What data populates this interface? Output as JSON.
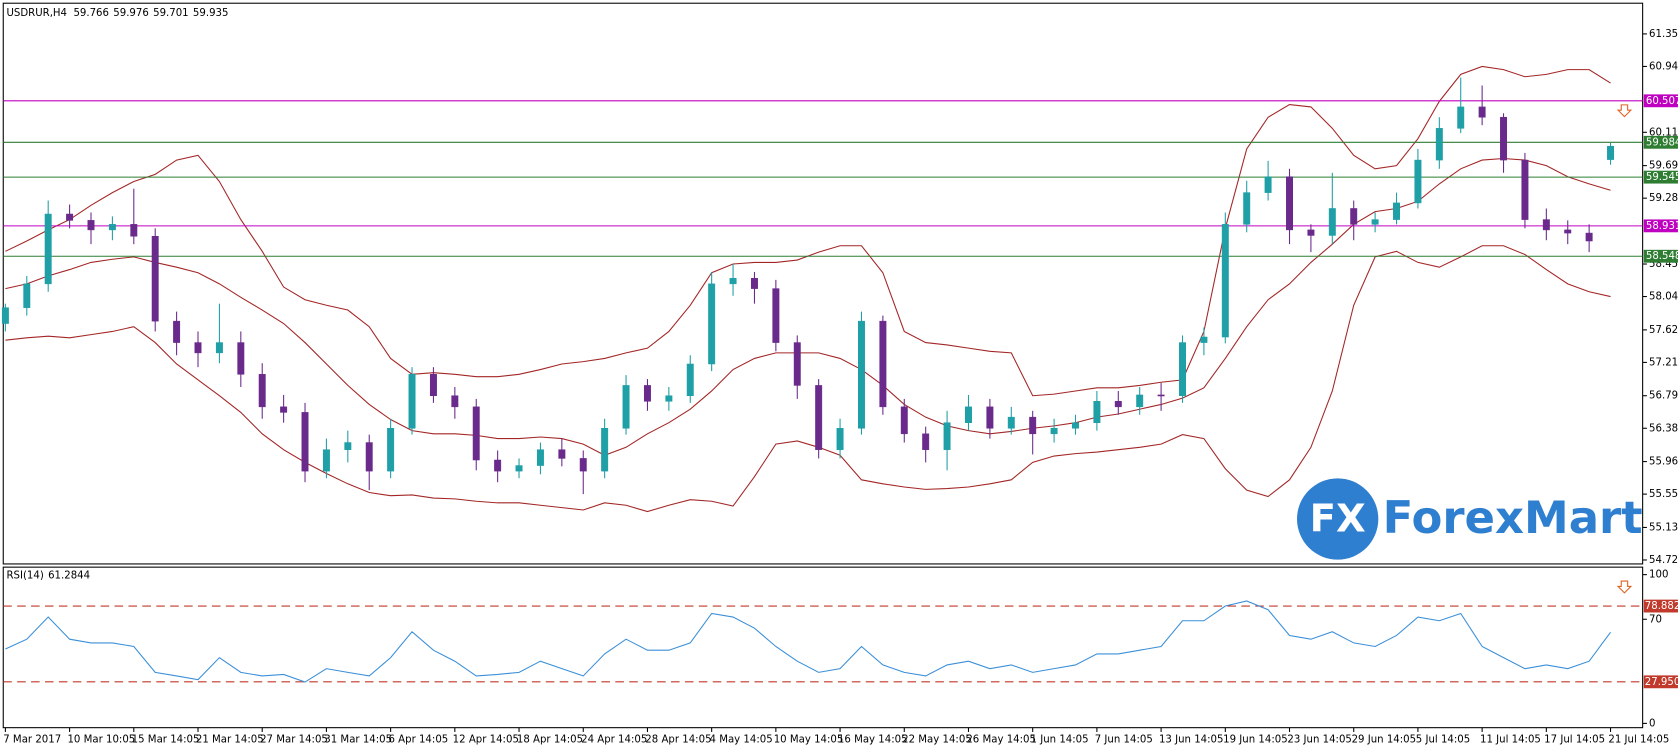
{
  "header": {
    "symbol": "USDRUR,H4"
  },
  "watermark": {
    "mark": "FX",
    "text": "ForexMart"
  },
  "chart_data": [
    {
      "type": "candlestick",
      "categories": [
        "7 Mar 2017",
        null,
        null,
        "10 Mar 10:05",
        null,
        null,
        "15 Mar 14:05",
        null,
        null,
        "21 Mar 14:05",
        null,
        null,
        "27 Mar 14:05",
        null,
        null,
        "31 Mar 14:05",
        null,
        null,
        "6 Apr 14:05",
        null,
        null,
        "12 Apr 14:05",
        null,
        null,
        "18 Apr 14:05",
        null,
        null,
        "24 Apr 14:05",
        null,
        null,
        "28 Apr 14:05",
        null,
        null,
        "4 May 14:05",
        null,
        null,
        "10 May 14:05",
        null,
        null,
        "16 May 14:05",
        null,
        null,
        "22 May 14:05",
        null,
        null,
        "26 May 14:05",
        null,
        null,
        "1 Jun 14:05",
        null,
        null,
        "7 Jun 14:05",
        null,
        null,
        "13 Jun 14:05",
        null,
        null,
        "19 Jun 14:05",
        null,
        null,
        "23 Jun 14:05",
        null,
        null,
        "29 Jun 14:05",
        null,
        null,
        "5 Jul 14:05",
        null,
        null,
        "11 Jul 14:05",
        null,
        null,
        "17 Jul 14:05",
        null,
        null,
        "21 Jul 14:05"
      ],
      "open": [
        57.7,
        57.9,
        58.2,
        59.08,
        59.0,
        58.88,
        58.95,
        58.8,
        57.73,
        57.46,
        57.33,
        57.46,
        57.06,
        56.65,
        56.58,
        55.84,
        56.11,
        56.2,
        55.84,
        56.38,
        57.06,
        56.79,
        56.65,
        55.98,
        55.84,
        55.91,
        56.11,
        56.0,
        55.84,
        56.38,
        56.92,
        56.72,
        56.79,
        57.19,
        58.2,
        58.27,
        58.14,
        57.46,
        56.92,
        56.11,
        56.38,
        57.73,
        56.65,
        56.31,
        56.11,
        56.45,
        56.65,
        56.38,
        56.52,
        56.31,
        56.38,
        56.45,
        56.72,
        56.65,
        56.8,
        56.79,
        57.46,
        57.53,
        58.95,
        59.35,
        59.55,
        58.88,
        58.81,
        59.15,
        58.95,
        59.01,
        59.22,
        59.76,
        60.16,
        60.43,
        60.3,
        59.76,
        59.01,
        58.88,
        58.84,
        59.766
      ],
      "high": [
        57.95,
        58.3,
        59.25,
        59.2,
        59.1,
        59.05,
        59.4,
        58.9,
        57.85,
        57.6,
        57.95,
        57.6,
        57.2,
        56.8,
        56.7,
        56.25,
        56.35,
        56.3,
        56.5,
        57.15,
        57.15,
        56.9,
        56.75,
        56.1,
        56.0,
        56.2,
        56.25,
        56.1,
        56.5,
        57.05,
        57.0,
        56.9,
        57.3,
        58.35,
        58.45,
        58.35,
        58.25,
        57.55,
        57.0,
        56.5,
        57.85,
        57.8,
        56.75,
        56.4,
        56.6,
        56.8,
        56.75,
        56.65,
        56.6,
        56.5,
        56.55,
        56.85,
        56.85,
        56.9,
        56.95,
        57.55,
        57.65,
        59.1,
        59.5,
        59.75,
        59.65,
        58.95,
        59.6,
        59.25,
        59.1,
        59.35,
        59.9,
        60.3,
        60.8,
        60.7,
        60.35,
        59.85,
        59.15,
        59.0,
        58.95,
        59.976
      ],
      "low": [
        57.6,
        57.8,
        58.1,
        58.9,
        58.7,
        58.75,
        58.7,
        57.6,
        57.3,
        57.15,
        57.2,
        56.9,
        56.5,
        56.45,
        55.7,
        55.75,
        55.95,
        55.6,
        55.75,
        56.3,
        56.7,
        56.5,
        55.85,
        55.7,
        55.75,
        55.8,
        55.9,
        55.55,
        55.75,
        56.3,
        56.6,
        56.6,
        56.7,
        57.1,
        58.05,
        57.95,
        57.35,
        56.75,
        56.0,
        56.0,
        56.3,
        56.55,
        56.2,
        55.95,
        55.85,
        56.35,
        56.25,
        56.3,
        56.05,
        56.2,
        56.3,
        56.35,
        56.55,
        56.55,
        56.6,
        56.7,
        57.3,
        57.45,
        58.85,
        59.25,
        58.7,
        58.6,
        58.7,
        58.75,
        58.85,
        58.95,
        59.15,
        59.65,
        60.1,
        60.2,
        59.6,
        58.9,
        58.75,
        58.7,
        58.6,
        59.701
      ],
      "close": [
        57.9,
        58.2,
        59.08,
        59.0,
        58.88,
        58.95,
        58.8,
        57.73,
        57.46,
        57.33,
        57.46,
        57.06,
        56.65,
        56.58,
        55.84,
        56.11,
        56.2,
        55.84,
        56.38,
        57.06,
        56.79,
        56.65,
        55.98,
        55.84,
        55.91,
        56.11,
        56.0,
        55.84,
        56.38,
        56.92,
        56.72,
        56.79,
        57.19,
        58.2,
        58.27,
        58.14,
        57.46,
        56.92,
        56.11,
        56.38,
        57.73,
        56.65,
        56.31,
        56.11,
        56.45,
        56.65,
        56.38,
        56.52,
        56.31,
        56.38,
        56.45,
        56.72,
        56.65,
        56.8,
        56.79,
        57.46,
        57.53,
        58.95,
        59.35,
        59.55,
        58.88,
        58.81,
        59.15,
        58.95,
        59.01,
        59.22,
        59.76,
        60.16,
        60.43,
        60.3,
        59.76,
        59.01,
        58.88,
        58.84,
        58.74,
        59.935
      ],
      "bull_color": "#1f9fa6",
      "bear_color": "#6a2a8c",
      "overlays": [
        {
          "color": "#a32626",
          "values": [
            58.61,
            58.74,
            58.88,
            59.01,
            59.19,
            59.35,
            59.49,
            59.58,
            59.76,
            59.82,
            59.49,
            59.01,
            58.61,
            58.16,
            58.0,
            57.93,
            57.87,
            57.66,
            57.26,
            57.06,
            57.08,
            57.06,
            57.03,
            57.03,
            57.06,
            57.12,
            57.19,
            57.22,
            57.26,
            57.33,
            57.39,
            57.6,
            57.93,
            58.34,
            58.45,
            58.47,
            58.47,
            58.5,
            58.6,
            58.68,
            58.68,
            58.34,
            57.6,
            57.46,
            57.43,
            57.39,
            57.35,
            57.33,
            56.79,
            56.81,
            56.85,
            56.89,
            56.89,
            56.92,
            56.96,
            56.99,
            57.6,
            58.9,
            59.9,
            60.3,
            60.46,
            60.43,
            60.16,
            59.82,
            59.65,
            59.69,
            60.03,
            60.5,
            60.84,
            60.94,
            60.9,
            60.81,
            60.84,
            60.9,
            60.9,
            60.73
          ]
        },
        {
          "color": "#a32626",
          "values": [
            58.14,
            58.2,
            58.3,
            58.38,
            58.47,
            58.51,
            58.54,
            58.47,
            58.41,
            58.34,
            58.2,
            58.03,
            57.87,
            57.7,
            57.46,
            57.19,
            56.92,
            56.68,
            56.49,
            56.35,
            56.31,
            56.31,
            56.29,
            56.25,
            56.25,
            56.27,
            56.25,
            56.18,
            56.04,
            56.14,
            56.31,
            56.45,
            56.62,
            56.85,
            57.12,
            57.26,
            57.33,
            57.33,
            57.33,
            57.26,
            57.12,
            56.92,
            56.68,
            56.52,
            56.41,
            56.35,
            56.31,
            56.34,
            56.38,
            56.41,
            56.45,
            56.52,
            56.56,
            56.62,
            56.68,
            56.76,
            56.89,
            57.26,
            57.66,
            58.0,
            58.2,
            58.47,
            58.7,
            58.95,
            59.11,
            59.15,
            59.24,
            59.46,
            59.65,
            59.76,
            59.78,
            59.76,
            59.69,
            59.55,
            59.46,
            59.38
          ]
        },
        {
          "color": "#a32626",
          "values": [
            57.49,
            57.52,
            57.54,
            57.52,
            57.56,
            57.6,
            57.66,
            57.46,
            57.19,
            56.99,
            56.79,
            56.58,
            56.31,
            56.11,
            55.95,
            55.81,
            55.68,
            55.57,
            55.53,
            55.54,
            55.5,
            55.49,
            55.46,
            55.44,
            55.44,
            55.41,
            55.38,
            55.35,
            55.44,
            55.41,
            55.33,
            55.41,
            55.48,
            55.46,
            55.4,
            55.77,
            56.18,
            56.22,
            56.14,
            56.04,
            55.73,
            55.68,
            55.64,
            55.61,
            55.62,
            55.64,
            55.68,
            55.73,
            55.95,
            56.03,
            56.06,
            56.08,
            56.11,
            56.14,
            56.18,
            56.3,
            56.25,
            55.87,
            55.6,
            55.52,
            55.73,
            56.14,
            56.85,
            57.93,
            58.54,
            58.61,
            58.47,
            58.41,
            58.54,
            58.68,
            58.68,
            58.57,
            58.38,
            58.2,
            58.1,
            58.04
          ]
        }
      ],
      "levels": [
        {
          "value": 60.507,
          "color": "#c000c0"
        },
        {
          "value": 59.984,
          "color": "#2e7d32"
        },
        {
          "value": 59.545,
          "color": "#2e7d32"
        },
        {
          "value": 58.931,
          "color": "#c000c0"
        },
        {
          "value": 58.548,
          "color": "#2e7d32"
        }
      ],
      "ylim": [
        54.67,
        61.71
      ],
      "yticks": [
        {
          "value": 61.35,
          "label": "61.350"
        },
        {
          "value": 60.94,
          "label": "60.940"
        },
        {
          "value": 60.11,
          "label": "60.110"
        },
        {
          "value": 59.69,
          "label": "59.690"
        },
        {
          "value": 59.28,
          "label": "59.280"
        },
        {
          "value": 58.45,
          "label": "58.450"
        },
        {
          "value": 58.04,
          "label": "58.040"
        },
        {
          "value": 57.62,
          "label": "57.620"
        },
        {
          "value": 57.21,
          "label": "57.210"
        },
        {
          "value": 56.79,
          "label": "56.790"
        },
        {
          "value": 56.38,
          "label": "56.380"
        },
        {
          "value": 55.96,
          "label": "55.960"
        },
        {
          "value": 55.55,
          "label": "55.550"
        },
        {
          "value": 55.13,
          "label": "55.130"
        },
        {
          "value": 54.72,
          "label": "54.720"
        }
      ]
    },
    {
      "type": "line",
      "title": "RSI(14)",
      "series": [
        {
          "color": "#3b8fd8",
          "values": [
            50.0,
            56.6,
            71.5,
            56.6,
            54.1,
            54.1,
            51.7,
            34.3,
            31.9,
            29.4,
            44.2,
            34.3,
            31.9,
            32.9,
            27.8,
            36.8,
            34.3,
            31.9,
            44.2,
            61.6,
            49.2,
            41.8,
            31.9,
            32.9,
            34.3,
            41.8,
            36.8,
            31.9,
            46.7,
            56.6,
            49.2,
            49.2,
            54.1,
            73.9,
            71.5,
            64.0,
            51.7,
            41.8,
            34.3,
            36.8,
            51.7,
            39.3,
            34.3,
            31.9,
            39.3,
            41.8,
            36.8,
            39.3,
            34.3,
            36.8,
            39.3,
            46.7,
            46.7,
            49.2,
            51.7,
            69.0,
            69.0,
            78.9,
            82.3,
            76.4,
            59.1,
            56.6,
            61.6,
            54.1,
            51.7,
            59.1,
            71.5,
            69.0,
            73.9,
            51.7,
            44.2,
            36.8,
            39.3,
            36.8,
            41.8,
            61.2844
          ]
        }
      ],
      "levels": [
        {
          "value": 78.882,
          "label": "78.8820",
          "color": "#c0392b"
        },
        {
          "value": 27.9503,
          "color": "#c0392b"
        }
      ],
      "ylim": [
        0,
        100
      ],
      "yticks": [
        100,
        70,
        0
      ]
    }
  ]
}
